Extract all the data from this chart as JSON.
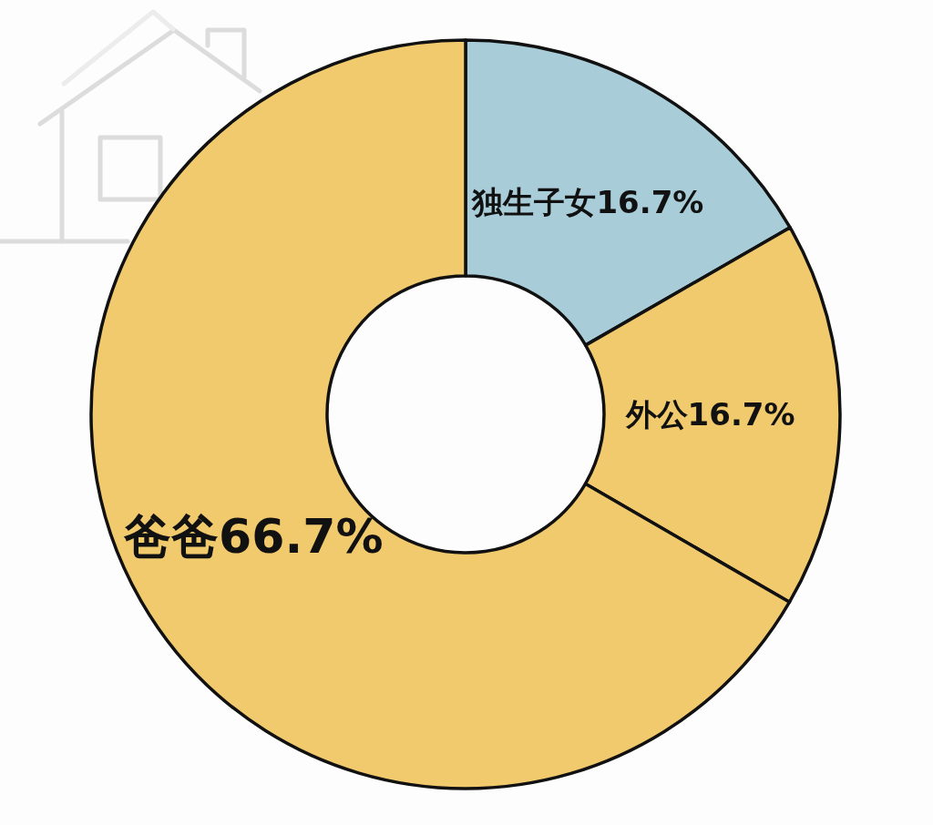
{
  "chart_data": {
    "type": "donut",
    "categories": [
      "独生子女",
      "外公",
      "爸爸"
    ],
    "values": [
      16.7,
      16.7,
      66.7
    ],
    "colors": [
      "#a8ccd8",
      "#f1ca6d",
      "#f1ca6d"
    ],
    "value_labels": [
      "16.7%",
      "16.7%",
      "66.7%"
    ]
  }
}
